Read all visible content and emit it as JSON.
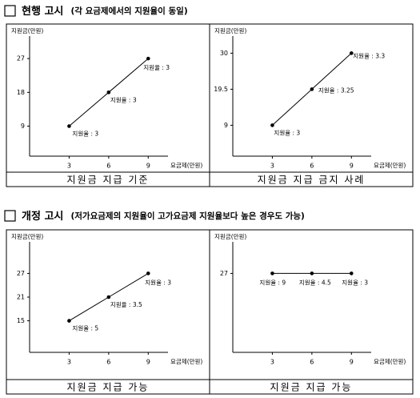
{
  "sections": [
    {
      "title": "현행 고시",
      "subtitle": "(각 요금제에서의 지원율이 동일)"
    },
    {
      "title": "개정 고시",
      "subtitle": "(저가요금제의 지원율이 고가요금제 지원율보다 높은 경우도 가능)"
    }
  ],
  "chart_data": [
    {
      "type": "line",
      "ylabel": "지원금(만원)",
      "xlabel": "요금제(만원)",
      "caption": "지원금 지급 기준",
      "color": "#000000",
      "x": [
        3,
        6,
        9
      ],
      "values": [
        9,
        18,
        27
      ],
      "annotations": [
        "지원율 : 3",
        "지원율 : 3",
        "지원율 : 3"
      ],
      "xlim": [
        0,
        10.5
      ],
      "xticks": [
        3,
        6,
        9
      ],
      "ylim": [
        1,
        33
      ],
      "yticks": [
        9,
        18,
        27
      ]
    },
    {
      "type": "line",
      "ylabel": "지원금(만원)",
      "xlabel": "요금제(만원)",
      "caption": "지원금 지급 금지 사례",
      "color": "#000000",
      "x": [
        3,
        6,
        9
      ],
      "values": [
        9,
        19.5,
        30
      ],
      "annotations": [
        "지원율 : 3",
        "지원율 : 3.25",
        "지원율 : 3.3"
      ],
      "xlim": [
        0,
        10.5
      ],
      "xticks": [
        3,
        6,
        9
      ],
      "ylim": [
        0,
        35
      ],
      "yticks": [
        9,
        19.5,
        30
      ]
    },
    {
      "type": "line",
      "ylabel": "지원금(만원)",
      "xlabel": "요금제(만원)",
      "caption": "지원금 지급 가능",
      "color": "#000000",
      "x": [
        3,
        6,
        9
      ],
      "values": [
        15,
        21,
        27
      ],
      "annotations": [
        "지원율 : 5",
        "지원율 : 3.5",
        "지원율 : 3"
      ],
      "xlim": [
        0,
        10.5
      ],
      "xticks": [
        3,
        6,
        9
      ],
      "ylim": [
        7,
        35
      ],
      "yticks": [
        15,
        21,
        27
      ]
    },
    {
      "type": "line",
      "ylabel": "지원금(만원)",
      "xlabel": "요금제(만원)",
      "caption": "지원금 지급 가능",
      "color": "#000000",
      "x": [
        3,
        6,
        9
      ],
      "values": [
        27,
        27,
        27
      ],
      "annotations": [
        "지원율 : 9",
        "지원율 : 4.5",
        "지원율 : 3"
      ],
      "xlim": [
        0,
        10.5
      ],
      "xticks": [
        3,
        6,
        9
      ],
      "ylim": [
        7,
        35
      ],
      "yticks": [
        27
      ]
    }
  ]
}
